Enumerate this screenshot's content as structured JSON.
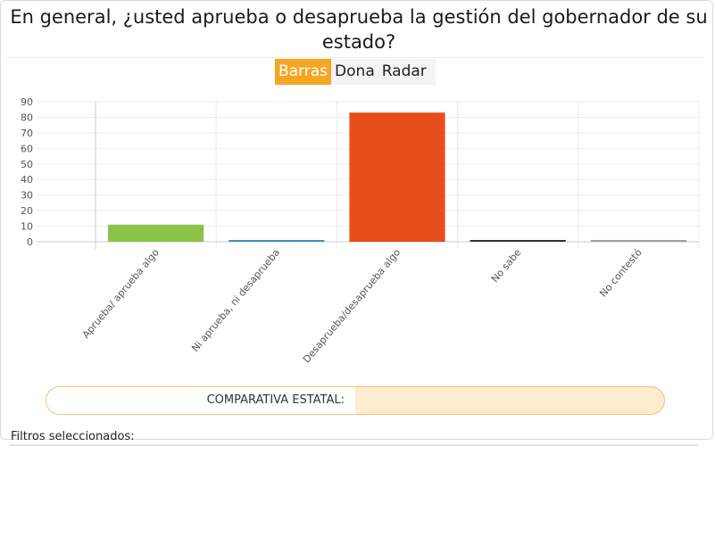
{
  "header": {
    "title": "En general, ¿usted aprueba o desaprueba la gestión del gobernador de su estado?"
  },
  "tabs": [
    {
      "label": "Barras",
      "active": true
    },
    {
      "label": "Dona",
      "active": false
    },
    {
      "label": "Radar",
      "active": false
    }
  ],
  "chart_data": {
    "type": "bar",
    "categories": [
      "Aprueba/ aprueba algo",
      "Ni aprueba, ni desaprueba",
      "Desaprueba/desaprueba algo",
      "No sabe",
      "No contestó"
    ],
    "values": [
      11,
      1,
      83,
      1,
      0.5
    ],
    "colors": [
      "#8bc34a",
      "#3b8fc4",
      "#e84e1b",
      "#333333",
      "#9e9e9e"
    ],
    "ylim": [
      0,
      90
    ],
    "yticks": [
      0,
      10,
      20,
      30,
      40,
      50,
      60,
      70,
      80,
      90
    ],
    "grid": true,
    "xlabel": "",
    "ylabel": ""
  },
  "comparativa": {
    "label": "COMPARATIVA    ESTATAL:"
  },
  "filters": {
    "label": "Filtros   seleccionados:"
  }
}
